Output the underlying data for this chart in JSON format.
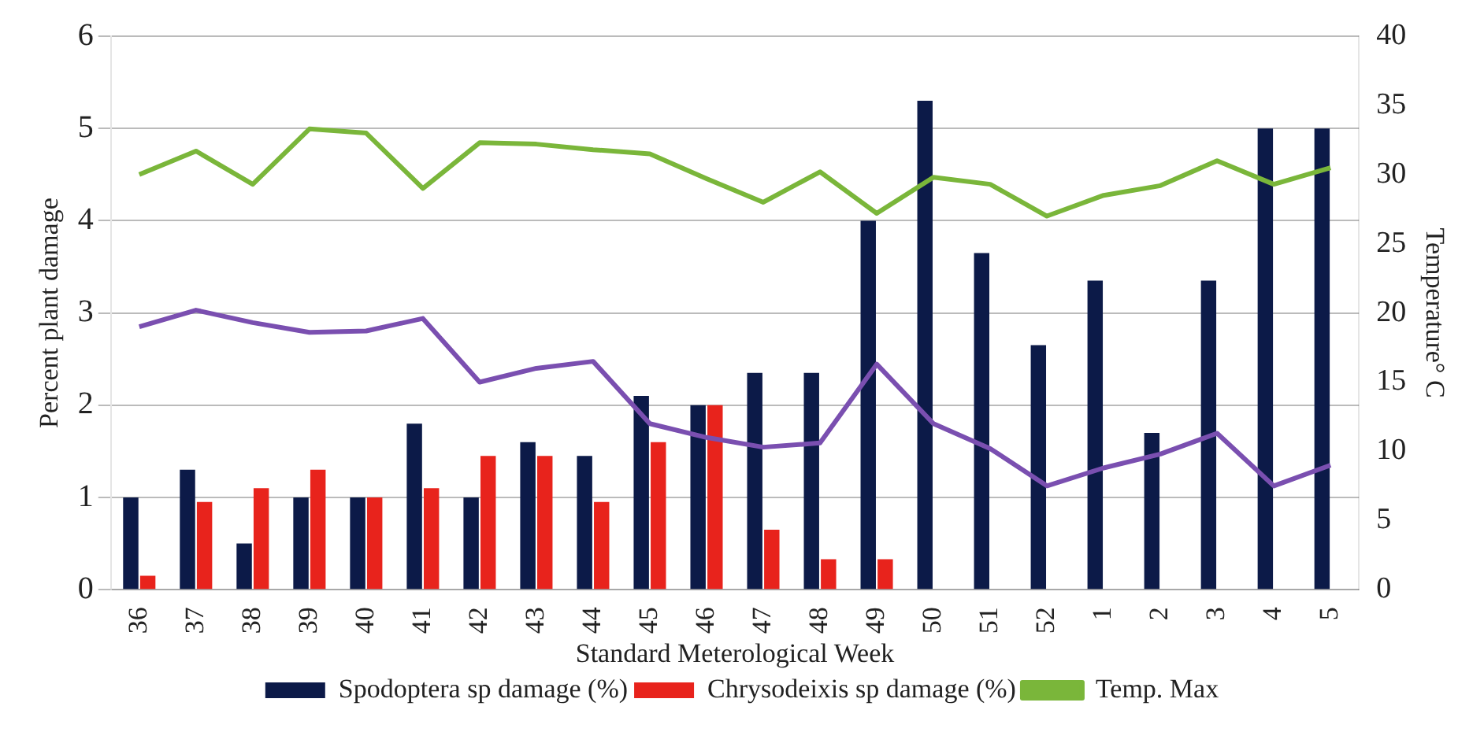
{
  "chart_data": {
    "type": "bar",
    "xlabel": "Standard Meterological Week",
    "ylabel": "Percent plant damage",
    "y2label": "Temperature° C",
    "categories": [
      "36",
      "37",
      "38",
      "39",
      "40",
      "41",
      "42",
      "43",
      "44",
      "45",
      "46",
      "47",
      "48",
      "49",
      "50",
      "51",
      "52",
      "1",
      "2",
      "3",
      "4",
      "5"
    ],
    "series": [
      {
        "name": "Spodoptera sp damage (%)",
        "color": "#0c1a48",
        "values": [
          1,
          1.3,
          0.5,
          1,
          1,
          1.8,
          1,
          1.6,
          1.45,
          2.1,
          2,
          2.35,
          2.35,
          4,
          5.3,
          3.65,
          2.65,
          3.35,
          1.7,
          3.35,
          5,
          5
        ]
      },
      {
        "name": "Chrysodeixis sp damage (%)",
        "color": "#e8231c",
        "values": [
          0.15,
          0.95,
          1.1,
          1.3,
          1,
          1.1,
          1.45,
          1.45,
          0.95,
          1.6,
          2,
          0.65,
          0.33,
          0.33,
          null,
          null,
          null,
          null,
          null,
          null,
          null,
          null
        ]
      },
      {
        "name": "Temp. Max",
        "type": "line",
        "axis": "y2",
        "color": "#7ab63a",
        "values": [
          30,
          31.7,
          29.3,
          33.3,
          33,
          29,
          32.3,
          32.2,
          31.8,
          31.5,
          29.7,
          28,
          30.2,
          27.2,
          29.8,
          29.3,
          27,
          28.5,
          29.2,
          31,
          29.3,
          30.5
        ]
      },
      {
        "type": "line",
        "axis": "y2",
        "color": "#7a4fb0",
        "values": [
          19,
          20.2,
          19.3,
          18.6,
          18.7,
          19.6,
          15,
          16,
          16.5,
          12,
          11,
          10.3,
          10.6,
          16.3,
          12,
          10.2,
          7.5,
          8.8,
          9.8,
          11.3,
          7.5,
          9
        ]
      }
    ],
    "ylim": [
      0,
      6
    ],
    "yticks": [
      0,
      1,
      2,
      3,
      4,
      5,
      6
    ],
    "y2lim": [
      0,
      40
    ],
    "y2ticks": [
      0,
      5,
      10,
      15,
      20,
      25,
      30,
      35,
      40
    ],
    "grid": "y",
    "legend": "bottom",
    "marker": "none",
    "line_style": "solid"
  }
}
